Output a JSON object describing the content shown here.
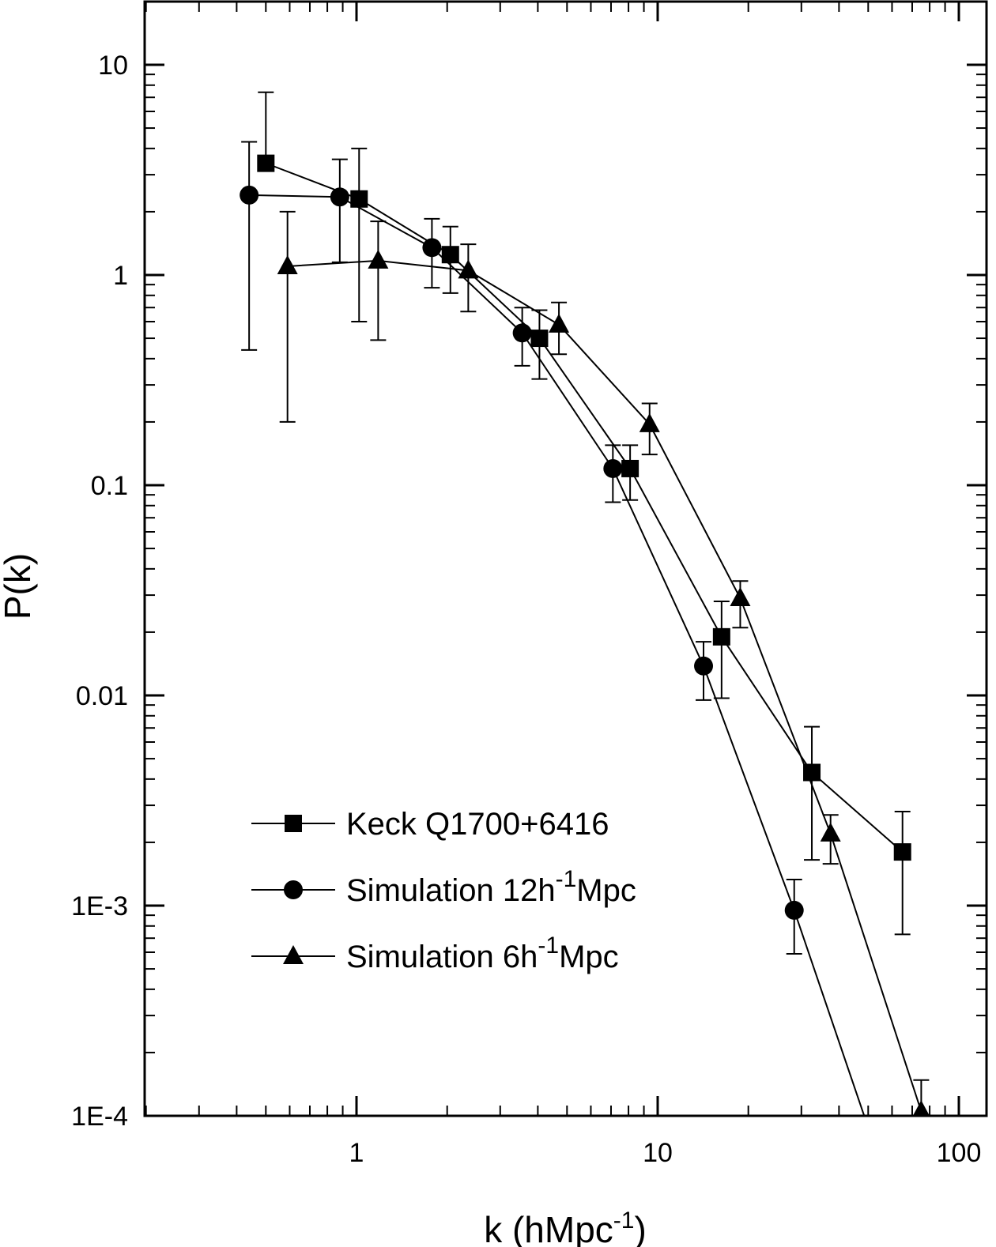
{
  "chart_data": {
    "type": "scatter",
    "xscale": "log",
    "yscale": "log",
    "xlim": [
      0.2,
      120
    ],
    "ylim": [
      0.0001,
      20
    ],
    "xlabel": {
      "main": "k (hMpc",
      "sup": "-1",
      "tail": ")"
    },
    "ylabel": "P(k)",
    "x_ticks": [
      {
        "value": 1,
        "label": "1"
      },
      {
        "value": 10,
        "label": "10"
      },
      {
        "value": 100,
        "label": "100"
      }
    ],
    "y_ticks": [
      {
        "value": 10,
        "label": "10"
      },
      {
        "value": 1,
        "label": "1"
      },
      {
        "value": 0.1,
        "label": "0.1"
      },
      {
        "value": 0.01,
        "label": "0.01"
      },
      {
        "value": 0.001,
        "label": "1E-3"
      },
      {
        "value": 0.0001,
        "label": "1E-4"
      }
    ],
    "legend_placement": "lower-left",
    "series": [
      {
        "name": "Keck Q1700+6416",
        "legend": {
          "main": "Keck Q1700+6416"
        },
        "marker": "square",
        "points": [
          {
            "x": 0.5,
            "y": 3.4,
            "lo": null,
            "hi": 7.4
          },
          {
            "x": 1.02,
            "y": 2.3,
            "lo": 0.6,
            "hi": 4.0
          },
          {
            "x": 2.05,
            "y": 1.25,
            "lo": 0.82,
            "hi": 1.7
          },
          {
            "x": 4.05,
            "y": 0.5,
            "lo": 0.32,
            "hi": 0.68
          },
          {
            "x": 8.1,
            "y": 0.12,
            "lo": 0.085,
            "hi": 0.155
          },
          {
            "x": 16.3,
            "y": 0.019,
            "lo": 0.0097,
            "hi": 0.028
          },
          {
            "x": 32.5,
            "y": 0.0043,
            "lo": 0.00165,
            "hi": 0.0071
          },
          {
            "x": 65,
            "y": 0.0018,
            "lo": 0.00073,
            "hi": 0.0028
          }
        ]
      },
      {
        "name": "Simulation 12h-1Mpc",
        "legend": {
          "main": "Simulation 12h",
          "sup": "-1",
          "tail": "Mpc"
        },
        "marker": "circle",
        "points": [
          {
            "x": 0.44,
            "y": 2.4,
            "lo": 0.44,
            "hi": 4.3
          },
          {
            "x": 0.88,
            "y": 2.35,
            "lo": 1.15,
            "hi": 3.55
          },
          {
            "x": 1.78,
            "y": 1.35,
            "lo": 0.87,
            "hi": 1.85
          },
          {
            "x": 3.55,
            "y": 0.53,
            "lo": 0.37,
            "hi": 0.7
          },
          {
            "x": 7.1,
            "y": 0.12,
            "lo": 0.083,
            "hi": 0.155
          },
          {
            "x": 14.2,
            "y": 0.0138,
            "lo": 0.0095,
            "hi": 0.018
          },
          {
            "x": 28.4,
            "y": 0.00095,
            "lo": 0.00059,
            "hi": 0.00133
          },
          {
            "x": 48.5,
            "y": 0.0001,
            "lo": null,
            "hi": null
          }
        ]
      },
      {
        "name": "Simulation 6h-1Mpc",
        "legend": {
          "main": "Simulation   6h",
          "sup": "-1",
          "tail": "Mpc"
        },
        "marker": "triangle",
        "points": [
          {
            "x": 0.59,
            "y": 1.1,
            "lo": 0.2,
            "hi": 2.0
          },
          {
            "x": 1.18,
            "y": 1.17,
            "lo": 0.49,
            "hi": 1.8
          },
          {
            "x": 2.35,
            "y": 1.05,
            "lo": 0.67,
            "hi": 1.4
          },
          {
            "x": 4.7,
            "y": 0.58,
            "lo": 0.42,
            "hi": 0.74
          },
          {
            "x": 9.4,
            "y": 0.195,
            "lo": 0.14,
            "hi": 0.245
          },
          {
            "x": 18.8,
            "y": 0.029,
            "lo": 0.021,
            "hi": 0.035
          },
          {
            "x": 37.5,
            "y": 0.0022,
            "lo": 0.00158,
            "hi": 0.0027
          },
          {
            "x": 75,
            "y": 0.000105,
            "lo": null,
            "hi": 0.000148
          }
        ]
      }
    ]
  }
}
